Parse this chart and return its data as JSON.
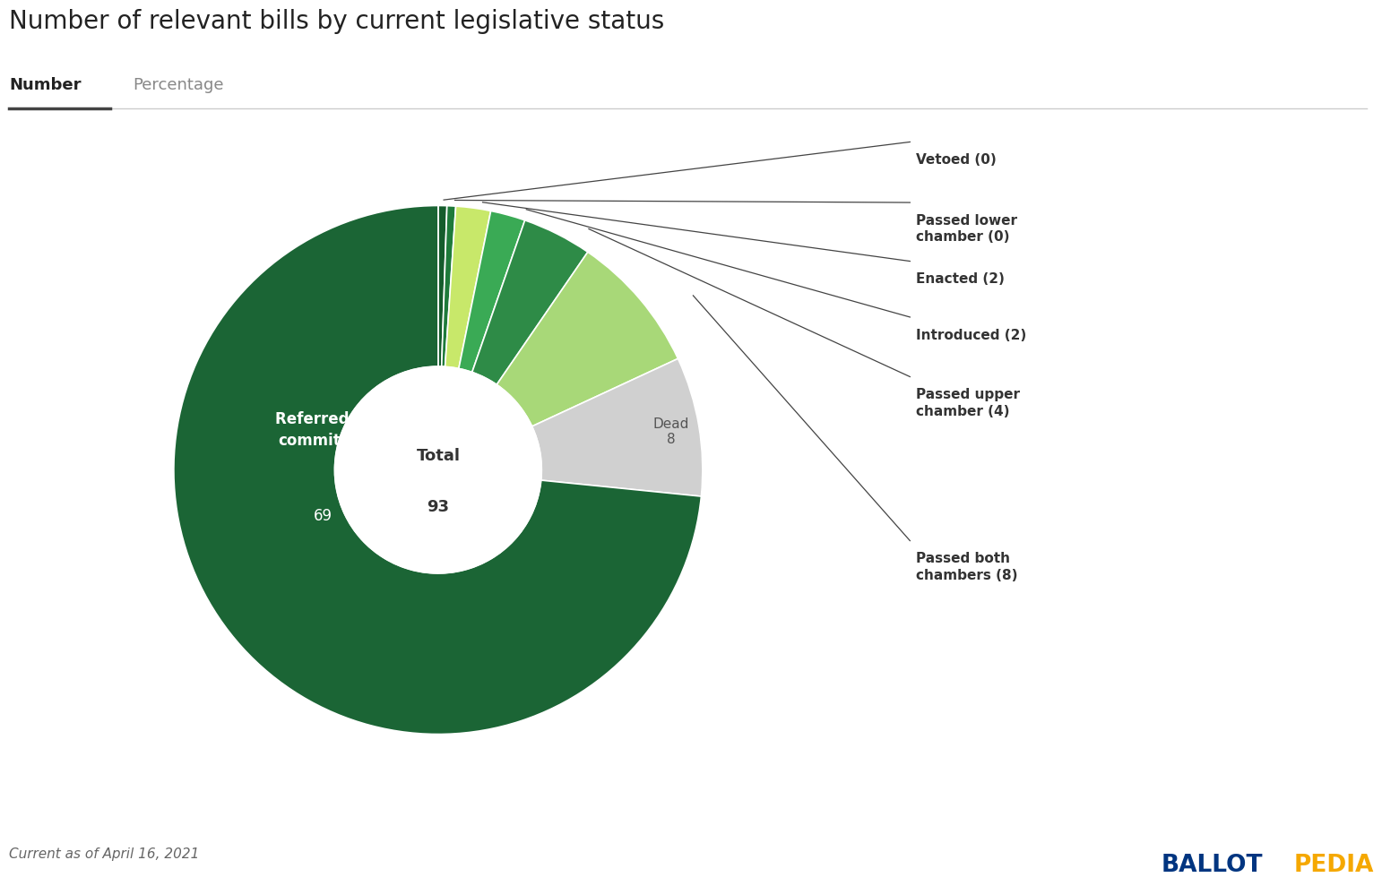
{
  "title": "Number of relevant bills by current legislative status",
  "tab_active": "Number",
  "tab_inactive": "Percentage",
  "total": 93,
  "center_label": "Total",
  "slices": [
    {
      "label": "Referred to committee\n69",
      "value": 69,
      "color": "#1b6535",
      "text_color": "#ffffff",
      "inside": true
    },
    {
      "label": "Passed both\nchambers (8)",
      "value": 8,
      "color": "#a8d878",
      "text_color": "#333333",
      "inside": false
    },
    {
      "label": "Dead\n8",
      "value": 8,
      "color": "#d0d0d0",
      "text_color": "#555555",
      "inside": true
    },
    {
      "label": "Passed upper\nchamber (4)",
      "value": 4,
      "color": "#2e8b47",
      "text_color": "#333333",
      "inside": false
    },
    {
      "label": "Introduced (2)",
      "value": 2,
      "color": "#3aaa55",
      "text_color": "#333333",
      "inside": false
    },
    {
      "label": "Enacted (2)",
      "value": 2,
      "color": "#c8e86a",
      "text_color": "#333333",
      "inside": false
    },
    {
      "label": "Passed lower\nchamber (0)",
      "value": 0.5,
      "color": "#1e7a3a",
      "text_color": "#333333",
      "inside": false
    },
    {
      "label": "Vetoed (0)",
      "value": 0.5,
      "color": "#155c2c",
      "text_color": "#333333",
      "inside": false
    }
  ],
  "footer": "Current as of April 16, 2021",
  "ballotpedia_blue": "#003580",
  "ballotpedia_orange": "#f5a800",
  "background_color": "#ffffff"
}
